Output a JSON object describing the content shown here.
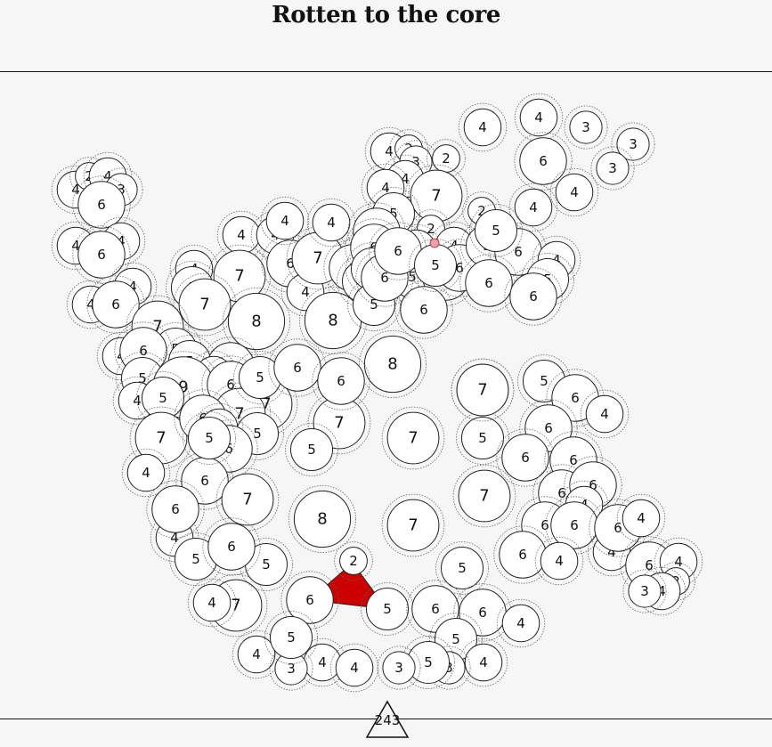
{
  "title": "Rotten to the core",
  "counter": {
    "value": "243",
    "shape": "triangle-icon"
  },
  "colors": {
    "background": "#f7f6f6",
    "node_fill": "#ffffff",
    "node_stroke": "#222222",
    "halo_stroke": "#666666",
    "highlight": "#cc0000",
    "highlight_node": "#f0a0a8"
  },
  "nodes": [
    {
      "id": "a1",
      "v": "4"
    },
    {
      "id": "a2",
      "v": "2"
    },
    {
      "id": "a3",
      "v": "4"
    },
    {
      "id": "a4",
      "v": "3"
    },
    {
      "id": "a5",
      "v": "6"
    },
    {
      "id": "a6",
      "v": "4"
    },
    {
      "id": "a7",
      "v": "4"
    },
    {
      "id": "a8",
      "v": "6"
    },
    {
      "id": "a9",
      "v": "4"
    },
    {
      "id": "a10",
      "v": "4"
    },
    {
      "id": "a11",
      "v": "6"
    },
    {
      "id": "b1",
      "v": "4"
    },
    {
      "id": "b2",
      "v": "5"
    },
    {
      "id": "b3",
      "v": "4"
    },
    {
      "id": "b4",
      "v": "4"
    },
    {
      "id": "b5",
      "v": "7"
    },
    {
      "id": "b6",
      "v": "6"
    },
    {
      "id": "b7",
      "v": "7"
    },
    {
      "id": "b8",
      "v": "4"
    },
    {
      "id": "b9",
      "v": "4"
    },
    {
      "id": "b10",
      "v": "7"
    },
    {
      "id": "b11",
      "v": "8"
    },
    {
      "id": "b12",
      "v": "8"
    },
    {
      "id": "b13",
      "v": "6"
    },
    {
      "id": "b14",
      "v": "5"
    },
    {
      "id": "b15",
      "v": "4"
    },
    {
      "id": "c1",
      "v": "4"
    },
    {
      "id": "c2",
      "v": "2"
    },
    {
      "id": "c3",
      "v": "3"
    },
    {
      "id": "c4",
      "v": "2"
    },
    {
      "id": "c5",
      "v": "4"
    },
    {
      "id": "c6",
      "v": "4"
    },
    {
      "id": "c7",
      "v": "7"
    },
    {
      "id": "c8",
      "v": "5"
    },
    {
      "id": "c9",
      "v": "6"
    },
    {
      "id": "c10",
      "v": "6"
    },
    {
      "id": "c11",
      "v": "2"
    },
    {
      "id": "c12",
      "v": "4"
    },
    {
      "id": "c13",
      "v": "4"
    },
    {
      "id": "c14",
      "v": "5"
    },
    {
      "id": "c15",
      "v": "5"
    },
    {
      "id": "c16",
      "v": "6"
    },
    {
      "id": "c17",
      "v": "6"
    },
    {
      "id": "c18",
      "v": "5"
    },
    {
      "id": "c19",
      "v": "6"
    },
    {
      "id": "c20",
      "v": "6"
    },
    {
      "id": "c21",
      "v": "6"
    },
    {
      "id": "c22",
      "v": "5"
    },
    {
      "id": "d1",
      "v": "4"
    },
    {
      "id": "d2",
      "v": "4"
    },
    {
      "id": "d3",
      "v": "3"
    },
    {
      "id": "d4",
      "v": "3"
    },
    {
      "id": "d5",
      "v": "3"
    },
    {
      "id": "d6",
      "v": "6"
    },
    {
      "id": "d7",
      "v": "2"
    },
    {
      "id": "d8",
      "v": "4"
    },
    {
      "id": "d9",
      "v": "4"
    },
    {
      "id": "d10",
      "v": "5"
    },
    {
      "id": "d11",
      "v": "6"
    },
    {
      "id": "d12",
      "v": "4"
    },
    {
      "id": "d13",
      "v": "5"
    },
    {
      "id": "d14",
      "v": "6"
    },
    {
      "id": "d15",
      "v": "6"
    },
    {
      "id": "d16",
      "v": "5"
    },
    {
      "id": "e1",
      "v": "7"
    },
    {
      "id": "e2",
      "v": "5"
    },
    {
      "id": "e3",
      "v": "4"
    },
    {
      "id": "e4",
      "v": "6"
    },
    {
      "id": "e5",
      "v": "5"
    },
    {
      "id": "e6",
      "v": "6"
    },
    {
      "id": "e7",
      "v": "5"
    },
    {
      "id": "e8",
      "v": "4"
    },
    {
      "id": "e9",
      "v": "4"
    },
    {
      "id": "e10",
      "v": "9"
    },
    {
      "id": "e11",
      "v": "5"
    },
    {
      "id": "e12",
      "v": "6"
    },
    {
      "id": "e13",
      "v": "7"
    },
    {
      "id": "e14",
      "v": "7"
    },
    {
      "id": "e15",
      "v": "5"
    },
    {
      "id": "e16",
      "v": "5"
    },
    {
      "id": "e17",
      "v": "7"
    },
    {
      "id": "e18",
      "v": "6"
    },
    {
      "id": "e19",
      "v": "4"
    },
    {
      "id": "e20",
      "v": "6"
    },
    {
      "id": "e21",
      "v": "6"
    },
    {
      "id": "e22",
      "v": "4"
    },
    {
      "id": "e23",
      "v": "4"
    },
    {
      "id": "e24",
      "v": "5"
    },
    {
      "id": "e25",
      "v": "6"
    },
    {
      "id": "e26",
      "v": "5"
    },
    {
      "id": "e27",
      "v": "7"
    },
    {
      "id": "e28",
      "v": "4"
    },
    {
      "id": "e29",
      "v": "7"
    },
    {
      "id": "e30",
      "v": "6"
    },
    {
      "id": "f1",
      "v": "8"
    },
    {
      "id": "f2",
      "v": "7"
    },
    {
      "id": "f3",
      "v": "5"
    },
    {
      "id": "f4",
      "v": "7"
    },
    {
      "id": "f5",
      "v": "7"
    },
    {
      "id": "f6",
      "v": "8"
    },
    {
      "id": "f7",
      "v": "7"
    },
    {
      "id": "f8",
      "v": "5"
    },
    {
      "id": "f9",
      "v": "5"
    },
    {
      "id": "f10",
      "v": "6"
    },
    {
      "id": "f11",
      "v": "6"
    },
    {
      "id": "f12",
      "v": "7"
    },
    {
      "id": "f13",
      "v": "7"
    },
    {
      "id": "g1",
      "v": "5"
    },
    {
      "id": "g2",
      "v": "6"
    },
    {
      "id": "g3",
      "v": "4"
    },
    {
      "id": "g4",
      "v": "6"
    },
    {
      "id": "g5",
      "v": "6"
    },
    {
      "id": "g6",
      "v": "6"
    },
    {
      "id": "g7",
      "v": "6"
    },
    {
      "id": "g8",
      "v": "6"
    },
    {
      "id": "g9",
      "v": "4"
    },
    {
      "id": "g10",
      "v": "6"
    },
    {
      "id": "g11",
      "v": "6"
    },
    {
      "id": "g12",
      "v": "6"
    },
    {
      "id": "g13",
      "v": "4"
    },
    {
      "id": "g14",
      "v": "4"
    },
    {
      "id": "g15",
      "v": "6"
    },
    {
      "id": "g16",
      "v": "4"
    },
    {
      "id": "h1",
      "v": "6"
    },
    {
      "id": "h2",
      "v": "4"
    },
    {
      "id": "h3",
      "v": "2"
    },
    {
      "id": "h4",
      "v": "4"
    },
    {
      "id": "h5",
      "v": "3"
    },
    {
      "id": "i1",
      "v": "2"
    },
    {
      "id": "i2",
      "v": "6"
    },
    {
      "id": "i3",
      "v": "5"
    },
    {
      "id": "i4",
      "v": "5"
    },
    {
      "id": "i5",
      "v": "6"
    },
    {
      "id": "i6",
      "v": "6"
    },
    {
      "id": "i7",
      "v": "4"
    },
    {
      "id": "i8",
      "v": "5"
    },
    {
      "id": "i9",
      "v": "4"
    },
    {
      "id": "i10",
      "v": "3"
    },
    {
      "id": "i11",
      "v": "4"
    },
    {
      "id": "i12",
      "v": "4"
    },
    {
      "id": "i13",
      "v": "3"
    },
    {
      "id": "i14",
      "v": "5"
    },
    {
      "id": "i15",
      "v": "3"
    },
    {
      "id": "i16",
      "v": "4"
    },
    {
      "id": "i17",
      "v": "5"
    }
  ]
}
